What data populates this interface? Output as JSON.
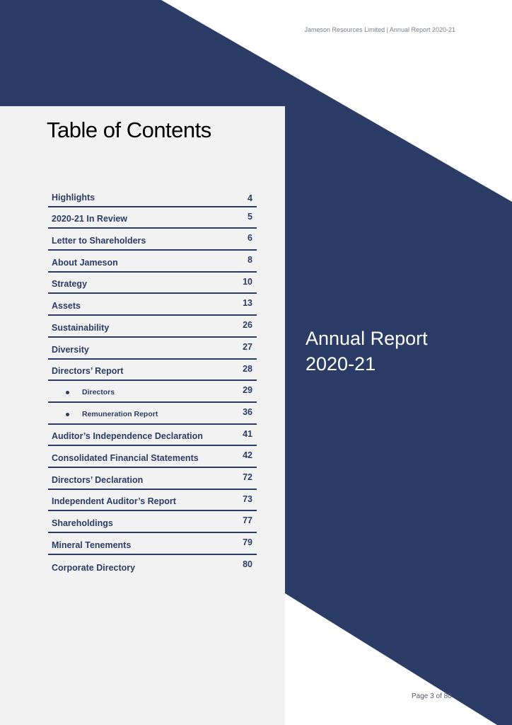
{
  "header": {
    "text": "Jameson Resources Limited | Annual Report 2020-21"
  },
  "toc": {
    "title": "Table of Contents",
    "items": [
      {
        "label": "Highlights",
        "page": "4",
        "sub": false
      },
      {
        "label": "2020-21 In Review",
        "page": "5",
        "sub": false
      },
      {
        "label": "Letter to Shareholders",
        "page": "6",
        "sub": false
      },
      {
        "label": "About Jameson",
        "page": "8",
        "sub": false
      },
      {
        "label": "Strategy",
        "page": "10",
        "sub": false
      },
      {
        "label": "Assets",
        "page": "13",
        "sub": false
      },
      {
        "label": "Sustainability",
        "page": "26",
        "sub": false
      },
      {
        "label": "Diversity",
        "page": "27",
        "sub": false
      },
      {
        "label": "Directors’ Report",
        "page": "28",
        "sub": false
      },
      {
        "label": "Directors",
        "page": "29",
        "sub": true
      },
      {
        "label": "Remuneration Report",
        "page": "36",
        "sub": true
      },
      {
        "label": "Auditor’s Independence Declaration",
        "page": "41",
        "sub": false
      },
      {
        "label": "Consolidated Financial Statements",
        "page": "42",
        "sub": false
      },
      {
        "label": "Directors’ Declaration",
        "page": "72",
        "sub": false
      },
      {
        "label": "Independent Auditor’s Report",
        "page": "73",
        "sub": false
      },
      {
        "label": "Shareholdings",
        "page": "77",
        "sub": false
      },
      {
        "label": "Mineral Tenements",
        "page": "79",
        "sub": false
      },
      {
        "label": "Corporate Directory",
        "page": "80",
        "sub": false
      }
    ]
  },
  "cover": {
    "line1": "Annual Report",
    "line2": "2020-21"
  },
  "footer": {
    "page_label": "Page 3 of 80"
  },
  "colors": {
    "navy": "#2b3d66",
    "panel": "#f2f2f2"
  }
}
